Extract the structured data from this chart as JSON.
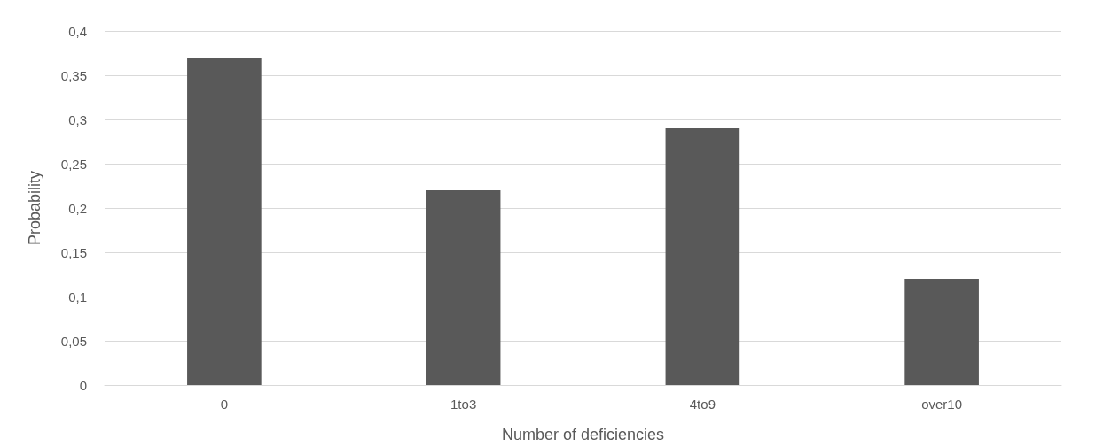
{
  "chart_data": {
    "type": "bar",
    "xlabel": "Number of deficiencies",
    "ylabel": "Probability",
    "categories": [
      "0",
      "1to3",
      "4to9",
      "over10"
    ],
    "values": [
      0.37,
      0.22,
      0.29,
      0.12
    ],
    "color": "#595959",
    "ylim": [
      0,
      0.4
    ],
    "yticks": [
      {
        "value": 0,
        "label": "0"
      },
      {
        "value": 0.05,
        "label": "0,05"
      },
      {
        "value": 0.1,
        "label": "0,1"
      },
      {
        "value": 0.15,
        "label": "0,15"
      },
      {
        "value": 0.2,
        "label": "0,2"
      },
      {
        "value": 0.25,
        "label": "0,25"
      },
      {
        "value": 0.3,
        "label": "0,3"
      },
      {
        "value": 0.35,
        "label": "0,35"
      },
      {
        "value": 0.4,
        "label": "0,4"
      }
    ],
    "grid": true
  }
}
